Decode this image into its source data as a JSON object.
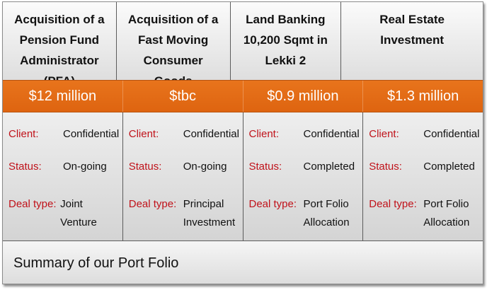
{
  "deals": [
    {
      "title": "Acquisition of a Pension Fund Administrator (PFA)",
      "amount": "$12 million",
      "client_label": "Client:",
      "client": "Confidential",
      "status_label": "Status:",
      "status": "On-going",
      "deal_type_label": "Deal type:",
      "deal_type": "Joint Venture"
    },
    {
      "title": "Acquisition of a Fast Moving Consumer Goods",
      "amount": "$tbc",
      "client_label": "Client:",
      "client": "Confidential",
      "status_label": "Status:",
      "status": "On-going",
      "deal_type_label": "Deal type:",
      "deal_type": "Principal Investment"
    },
    {
      "title": "Land Banking 10,200 Sqmt in Lekki 2",
      "amount": "$0.9 million",
      "client_label": "Client:",
      "client": "Confidential",
      "status_label": "Status:",
      "status": "Completed",
      "deal_type_label": "Deal type:",
      "deal_type": "Port Folio Allocation"
    },
    {
      "title": "Real Estate Investment",
      "amount": "$1.3 million",
      "client_label": "Client:",
      "client": "Confidential",
      "status_label": "Status:",
      "status": "Completed",
      "deal_type_label": "Deal type:",
      "deal_type": "Port Folio Allocation"
    }
  ],
  "footer": {
    "caption": "Summary of our Port Folio"
  },
  "colors": {
    "band": "#e36a14",
    "label": "#c0121a",
    "text": "#111111"
  }
}
